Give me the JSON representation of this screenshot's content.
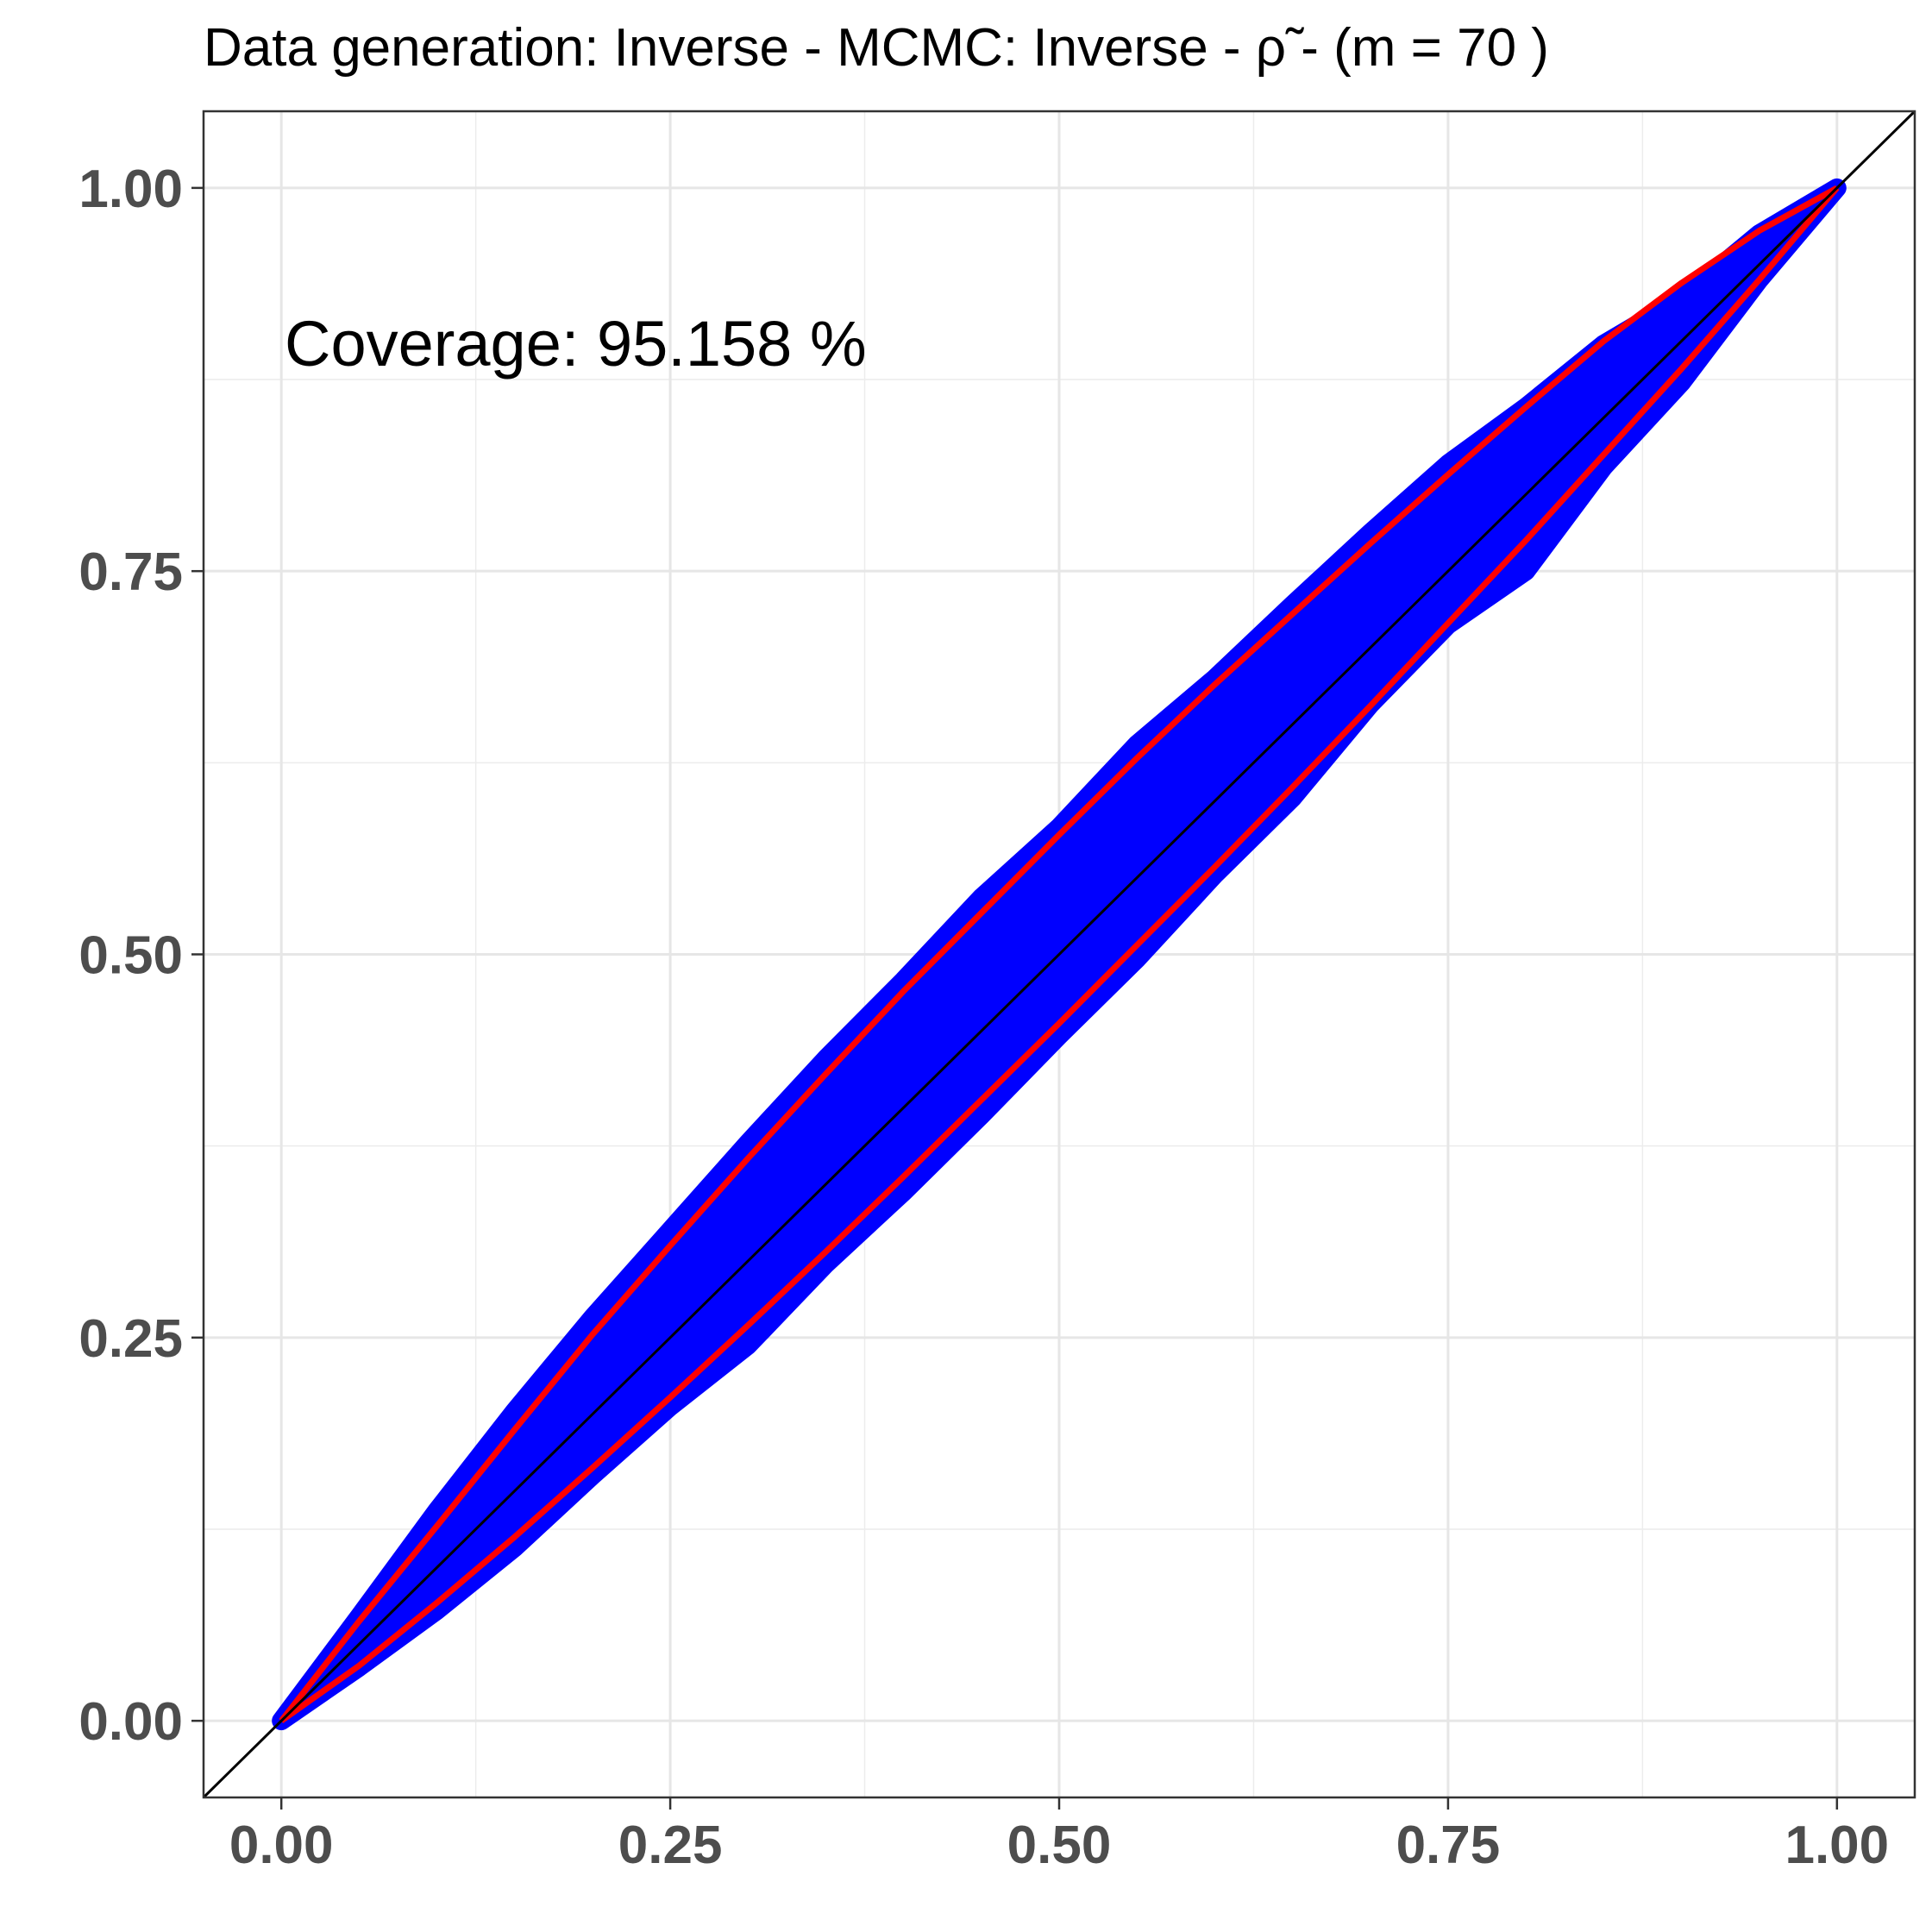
{
  "chart_data": {
    "type": "line",
    "title": "Data generation:  Inverse  -  MCMC:  Inverse  -  ρ̃  -   (m =  70 )",
    "xlabel": "",
    "ylabel": "",
    "xlim": [
      -0.05,
      1.05
    ],
    "ylim": [
      -0.05,
      1.05
    ],
    "x_ticks": [
      0.0,
      0.25,
      0.5,
      0.75,
      1.0
    ],
    "y_ticks": [
      0.0,
      0.25,
      0.5,
      0.75,
      1.0
    ],
    "x_tick_labels": [
      "0.00",
      "0.25",
      "0.50",
      "0.75",
      "1.00"
    ],
    "y_tick_labels": [
      "0.00",
      "0.25",
      "0.50",
      "0.75",
      "1.00"
    ],
    "grid": true,
    "annotation": "Coverage:  95.158 %",
    "series": [
      {
        "role": "band",
        "color": "#0000ff",
        "x": [
          0.0,
          0.05,
          0.1,
          0.15,
          0.2,
          0.25,
          0.3,
          0.35,
          0.4,
          0.45,
          0.5,
          0.55,
          0.6,
          0.65,
          0.7,
          0.75,
          0.8,
          0.85,
          0.9,
          0.95,
          1.0
        ],
        "upper": [
          0.0,
          0.068,
          0.137,
          0.202,
          0.263,
          0.32,
          0.377,
          0.432,
          0.483,
          0.537,
          0.583,
          0.637,
          0.68,
          0.728,
          0.775,
          0.82,
          0.857,
          0.898,
          0.928,
          0.97,
          1.0
        ],
        "lower": [
          0.0,
          0.035,
          0.072,
          0.113,
          0.16,
          0.205,
          0.245,
          0.298,
          0.345,
          0.395,
          0.447,
          0.497,
          0.552,
          0.602,
          0.663,
          0.715,
          0.75,
          0.818,
          0.873,
          0.94,
          1.0
        ]
      },
      {
        "role": "upper-bound",
        "color": "#ff0000",
        "x": [
          0.0,
          0.05,
          0.1,
          0.15,
          0.2,
          0.25,
          0.3,
          0.35,
          0.4,
          0.45,
          0.5,
          0.55,
          0.6,
          0.65,
          0.7,
          0.75,
          0.8,
          0.85,
          0.9,
          0.95,
          1.0
        ],
        "y": [
          0.0,
          0.065,
          0.127,
          0.19,
          0.252,
          0.31,
          0.367,
          0.422,
          0.476,
          0.527,
          0.578,
          0.628,
          0.676,
          0.722,
          0.768,
          0.813,
          0.857,
          0.9,
          0.938,
          0.972,
          1.0
        ]
      },
      {
        "role": "lower-bound",
        "color": "#ff0000",
        "x": [
          0.0,
          0.05,
          0.1,
          0.15,
          0.2,
          0.25,
          0.3,
          0.35,
          0.4,
          0.45,
          0.5,
          0.55,
          0.6,
          0.65,
          0.7,
          0.75,
          0.8,
          0.85,
          0.9,
          0.95,
          1.0
        ],
        "y": [
          0.0,
          0.036,
          0.077,
          0.12,
          0.165,
          0.211,
          0.258,
          0.306,
          0.355,
          0.405,
          0.455,
          0.506,
          0.557,
          0.609,
          0.662,
          0.716,
          0.77,
          0.826,
          0.882,
          0.94,
          1.0
        ]
      },
      {
        "role": "identity-line",
        "color": "#000000",
        "x": [
          -0.05,
          1.05
        ],
        "y": [
          -0.05,
          1.05
        ]
      }
    ]
  }
}
